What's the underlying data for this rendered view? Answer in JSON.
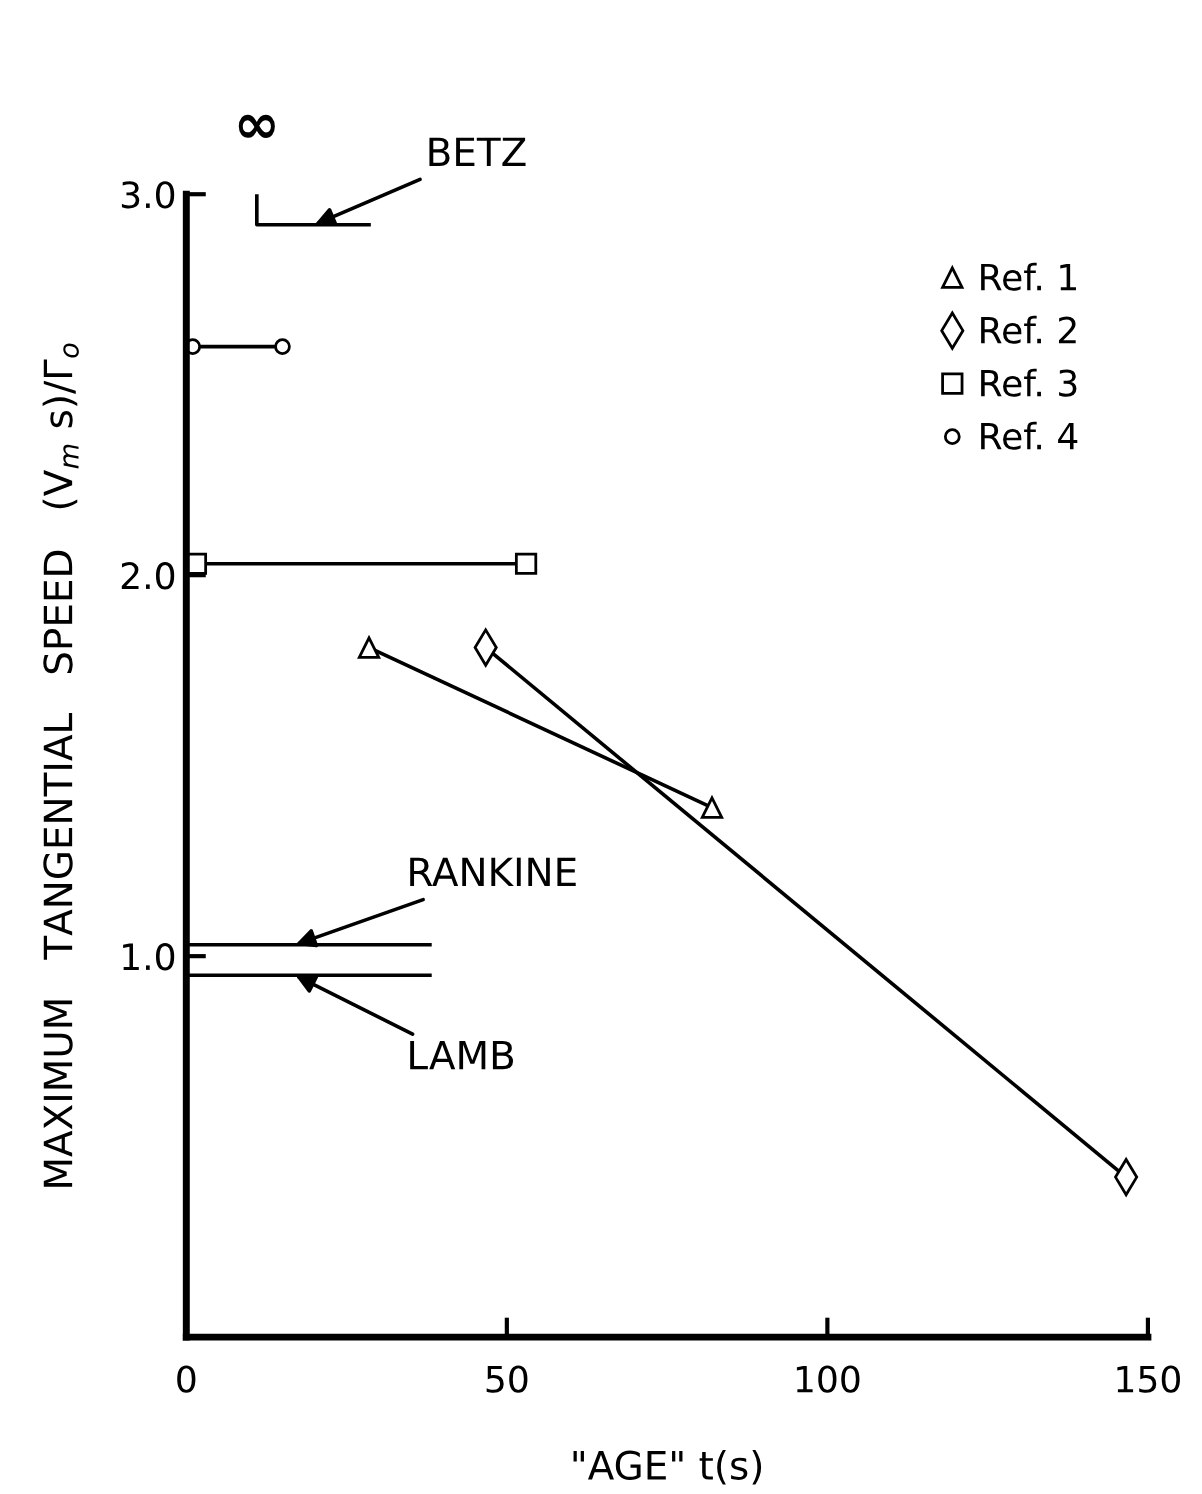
{
  "chart_data": {
    "type": "line",
    "xlabel": "\"AGE\" t(s)",
    "ylabel": "MAXIMUM   TANGENTIAL   SPEED   (V$_{m}$ s)/Γ$_{o}$",
    "xlim": [
      0,
      150
    ],
    "xticks": [
      0,
      50,
      100,
      150
    ],
    "ylim": [
      0,
      3.0
    ],
    "yticks": [
      {
        "value": 1.0,
        "label": "1.0"
      },
      {
        "value": 2.0,
        "label": "2.0"
      },
      {
        "value": 3.0,
        "label": "3.0"
      }
    ],
    "legend": "top right",
    "grid": false,
    "series": [
      {
        "name": "Ref. 1",
        "color": "#000000",
        "marker": "triangle",
        "x": [
          28.5,
          82
        ],
        "values": [
          1.81,
          1.39
        ]
      },
      {
        "name": "Ref. 2",
        "color": "#000000",
        "marker": "diamond",
        "x": [
          46.7,
          146.6
        ],
        "values": [
          1.81,
          0.42
        ]
      },
      {
        "name": "Ref. 3",
        "color": "#000000",
        "marker": "square",
        "x": [
          1.5,
          53
        ],
        "values": [
          2.03,
          2.03
        ]
      },
      {
        "name": "Ref. 4",
        "color": "#000000",
        "marker": "circle",
        "x": [
          1,
          15
        ],
        "values": [
          2.6,
          2.6
        ]
      },
      {
        "color": "#000000",
        "marker": "none",
        "x": [
          11,
          11,
          28.5
        ],
        "values": [
          3.0,
          2.92,
          2.92
        ]
      },
      {
        "color": "#000000",
        "marker": "none",
        "x": [
          0,
          38
        ],
        "values": [
          1.03,
          1.03
        ]
      },
      {
        "color": "#000000",
        "marker": "none",
        "x": [
          0,
          38
        ],
        "values": [
          0.95,
          0.95
        ]
      }
    ],
    "annotations": [
      {
        "text": "BETZ",
        "x": 20,
        "y": 2.92
      },
      {
        "text": "RANKINE",
        "x": 17,
        "y": 1.03
      },
      {
        "text": "LAMB",
        "x": 17,
        "y": 0.95
      },
      {
        "text": "∞",
        "x": 11,
        "y": 3.0
      }
    ]
  }
}
